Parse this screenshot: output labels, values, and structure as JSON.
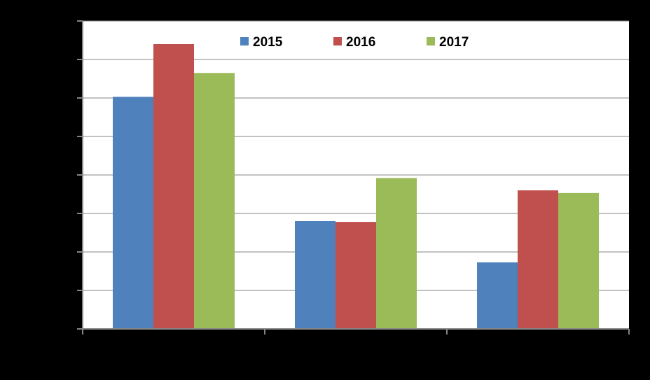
{
  "colors": {
    "background": "#000000",
    "plot_area": "#FFFFFF",
    "gridline": "#868686",
    "axis": "#868686"
  },
  "chart_data": {
    "type": "bar",
    "title": "",
    "xlabel": "",
    "ylabel": "",
    "categories": [
      "",
      "",
      ""
    ],
    "ylim": [
      0,
      8
    ],
    "grid": true,
    "legend_position": "top",
    "series": [
      {
        "name": "2015",
        "color": "#4F81BD",
        "values": [
          6.03,
          2.8,
          1.73
        ]
      },
      {
        "name": "2016",
        "color": "#C0504D",
        "values": [
          7.4,
          2.78,
          3.6
        ]
      },
      {
        "name": "2017",
        "color": "#9BBB59",
        "values": [
          6.65,
          3.92,
          3.53
        ]
      }
    ]
  }
}
